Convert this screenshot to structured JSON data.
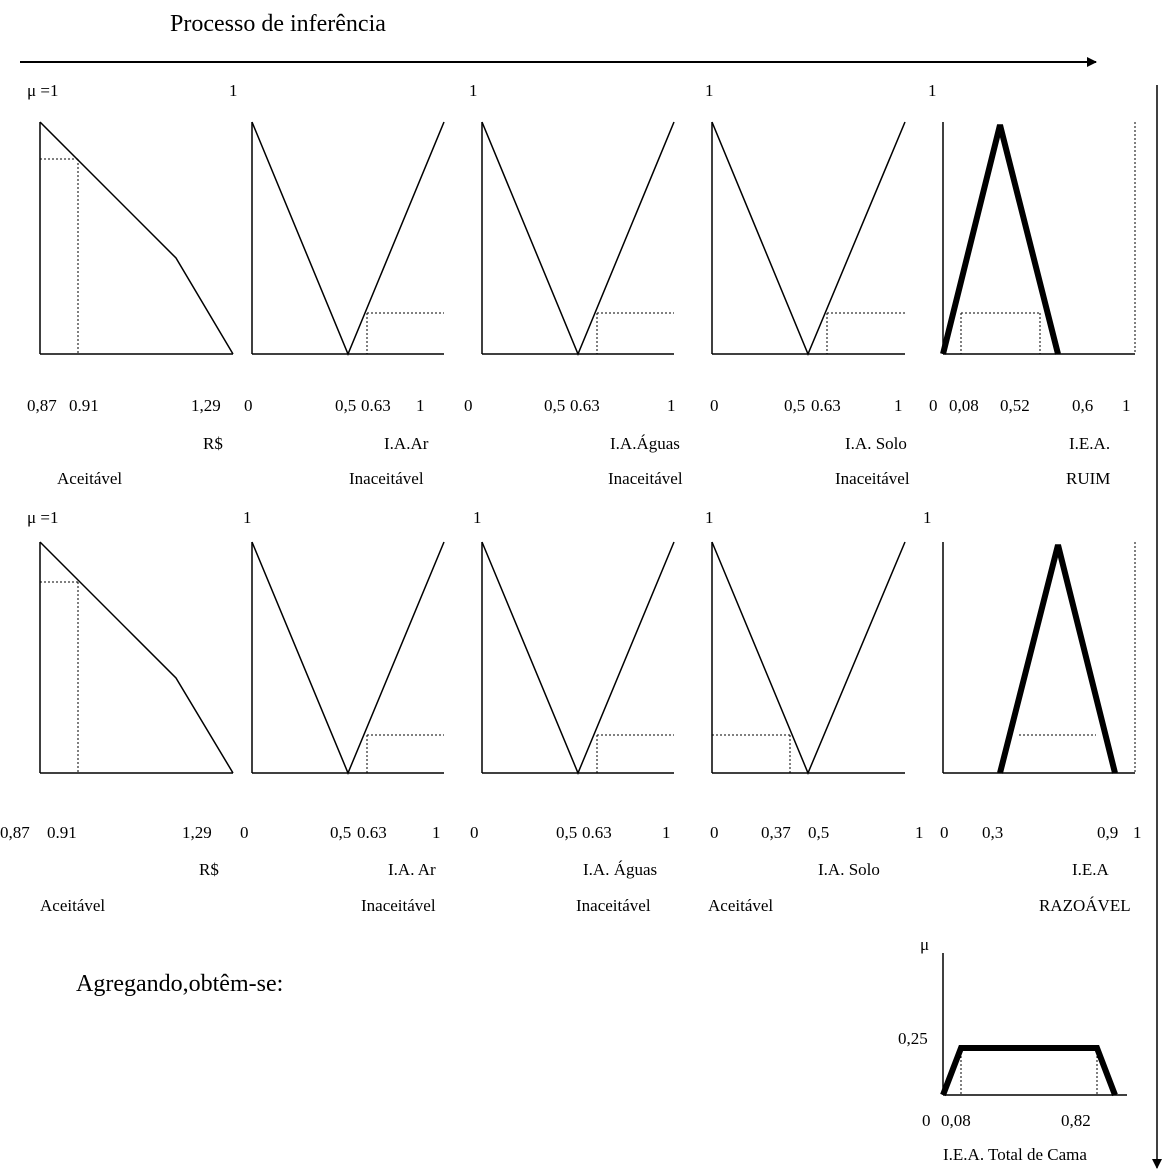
{
  "title": "Processo de inferência",
  "aggregate_text": "Agregando,obtêm-se:",
  "rows": [
    {
      "panels": [
        {
          "peak": "μ =1",
          "ticks": [
            "0,87",
            "0.91",
            "1,29"
          ],
          "unit": "R$",
          "term": "Aceitável"
        },
        {
          "peak": "1",
          "ticks": [
            "0",
            "0,5",
            "0.63",
            "1"
          ],
          "unit": "I.A.Ar",
          "term": "Inaceitável"
        },
        {
          "peak": "1",
          "ticks": [
            "0",
            "0,5",
            "0.63",
            "1"
          ],
          "unit": "I.A.Águas",
          "term": "Inaceitável"
        },
        {
          "peak": "1",
          "ticks": [
            "0",
            "0,5",
            "0.63",
            "1"
          ],
          "unit": "I.A. Solo",
          "term": "Inaceitável"
        },
        {
          "peak": "1",
          "ticks": [
            "0",
            "0,08",
            "0,52",
            "0,6",
            "1"
          ],
          "unit": "I.E.A.",
          "term": "RUIM"
        }
      ]
    },
    {
      "panels": [
        {
          "peak": "μ =1",
          "ticks": [
            "0,87",
            "0.91",
            "1,29"
          ],
          "unit": "R$",
          "term": "Aceitável"
        },
        {
          "peak": "1",
          "ticks": [
            "0",
            "0,5",
            "0.63",
            "1"
          ],
          "unit": "I.A. Ar",
          "term": "Inaceitável"
        },
        {
          "peak": "1",
          "ticks": [
            "0",
            "0,5",
            "0.63",
            "1"
          ],
          "unit": "I.A. Águas",
          "term": "Inaceitável"
        },
        {
          "peak": "1",
          "ticks": [
            "0",
            "0,37",
            "0,5",
            "1"
          ],
          "unit": "I.A. Solo",
          "term": "Aceitável"
        },
        {
          "peak": "1",
          "ticks": [
            "0",
            "0,3",
            "0,9",
            "1"
          ],
          "unit": "I.E.A",
          "term": "RAZOÁVEL"
        }
      ]
    }
  ],
  "result": {
    "y_label": "μ",
    "y_value": "0,25",
    "ticks": [
      "0",
      "0,08",
      "0,82"
    ],
    "label": "I.E.A. Total de Cama"
  }
}
